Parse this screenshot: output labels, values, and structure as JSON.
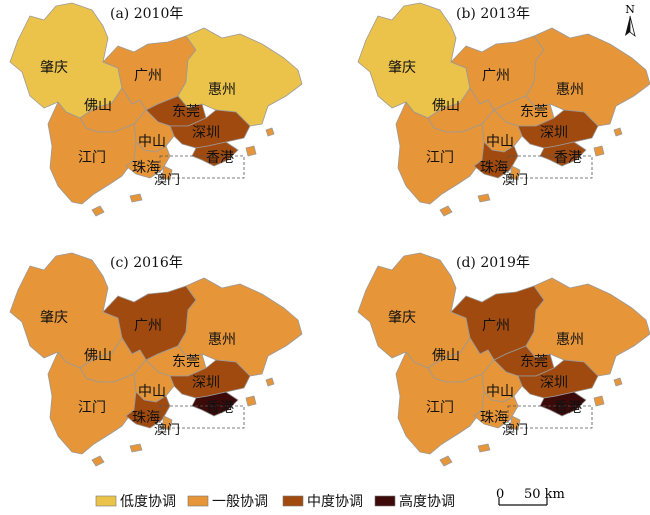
{
  "colors": {
    "low": "#ecc34a",
    "general": "#e69538",
    "medium": "#a04a0f",
    "high": "#3d0a0a",
    "outline": "#9a9a9a",
    "dashed_box": "#555555"
  },
  "panels": [
    {
      "title": "(a) 2010年",
      "levels": {
        "zhaoqing": "low",
        "guangzhou": "general",
        "huizhou": "low",
        "foshan": "general",
        "dongguan": "medium",
        "shenzhen": "medium",
        "hongkong": "medium",
        "zhongshan": "general",
        "jiangmen": "general",
        "zhuhai": "general",
        "macau": "general"
      }
    },
    {
      "title": "(b) 2013年",
      "levels": {
        "zhaoqing": "low",
        "guangzhou": "general",
        "huizhou": "general",
        "foshan": "general",
        "dongguan": "general",
        "shenzhen": "medium",
        "hongkong": "medium",
        "zhongshan": "general",
        "jiangmen": "general",
        "zhuhai": "medium",
        "macau": "general"
      }
    },
    {
      "title": "(c) 2016年",
      "levels": {
        "zhaoqing": "general",
        "guangzhou": "medium",
        "huizhou": "general",
        "foshan": "general",
        "dongguan": "general",
        "shenzhen": "medium",
        "hongkong": "high",
        "zhongshan": "general",
        "jiangmen": "general",
        "zhuhai": "medium",
        "macau": "general"
      }
    },
    {
      "title": "(d) 2019年",
      "levels": {
        "zhaoqing": "general",
        "guangzhou": "medium",
        "huizhou": "general",
        "foshan": "general",
        "dongguan": "medium",
        "shenzhen": "medium",
        "hongkong": "high",
        "zhongshan": "general",
        "jiangmen": "general",
        "zhuhai": "general",
        "macau": "general"
      }
    }
  ],
  "city_labels": {
    "zhaoqing": "肇庆",
    "guangzhou": "广州",
    "huizhou": "惠州",
    "foshan": "佛山",
    "dongguan": "东莞",
    "shenzhen": "深圳",
    "hongkong": "香港",
    "zhongshan": "中山",
    "jiangmen": "江门",
    "zhuhai": "珠海",
    "macau": "澳门"
  },
  "legend": [
    {
      "key": "low",
      "label": "低度协调"
    },
    {
      "key": "general",
      "label": "一般协调"
    },
    {
      "key": "medium",
      "label": "中度协调"
    },
    {
      "key": "high",
      "label": "高度协调"
    }
  ],
  "north_arrow": {
    "label": "N",
    "icon": "north-arrow-icon"
  },
  "scale_bar": {
    "start": "0",
    "end": "50 km"
  }
}
